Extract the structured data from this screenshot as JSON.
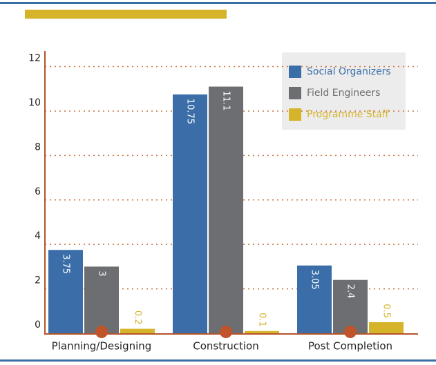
{
  "chart_data": {
    "type": "bar",
    "categories": [
      "Planning/Designing",
      "Construction",
      "Post Completion"
    ],
    "series": [
      {
        "name": "Social Organizers",
        "color": "#3b6ea8",
        "values": [
          3.75,
          10.75,
          3.05
        ]
      },
      {
        "name": "Field Engineers",
        "color": "#6d6e71",
        "values": [
          3,
          11.1,
          2.4
        ]
      },
      {
        "name": "Programme Staff",
        "color": "#d6b42a",
        "values": [
          0.2,
          0.1,
          0.5
        ]
      }
    ],
    "ylim": [
      0,
      12.7
    ],
    "yticks": [
      0,
      2,
      4,
      6,
      8,
      10,
      12
    ],
    "grid": true,
    "legend": "top-right"
  }
}
